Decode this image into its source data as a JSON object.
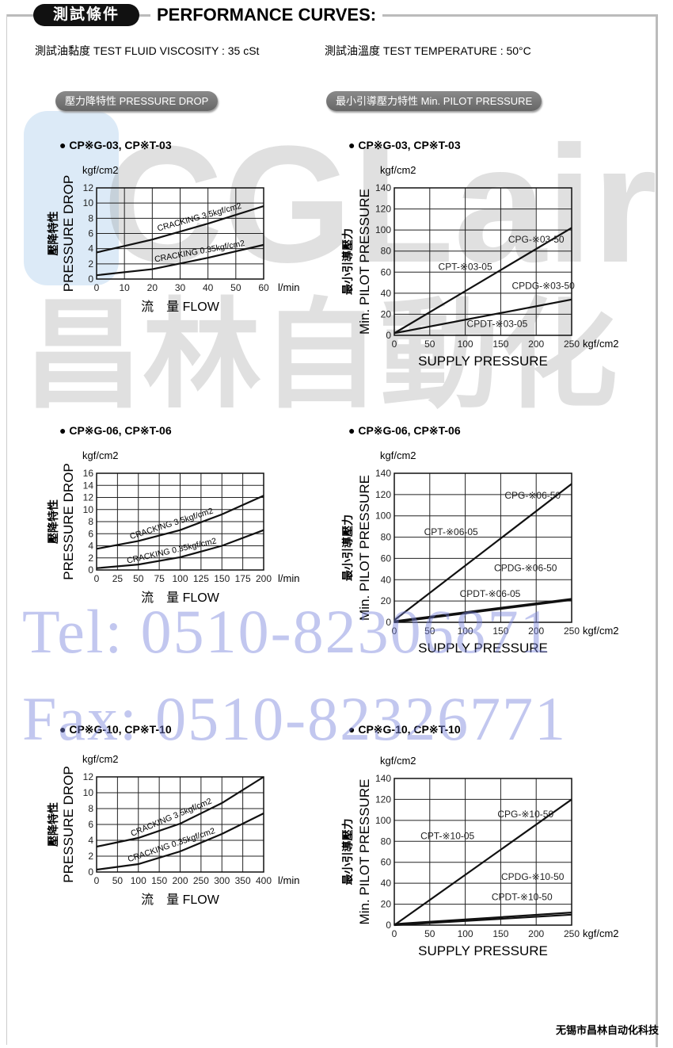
{
  "header": {
    "pill": "測試條件",
    "title": "PERFORMANCE CURVES:",
    "viscosity": "測試油黏度  TEST FLUID VISCOSITY : 35 cSt",
    "temperature": "測試油溫度  TEST TEMPERATURE : 50°C"
  },
  "sections": {
    "left": "壓力降特性  PRESSURE DROP",
    "right": "最小引導壓力特性  Min. PILOT PRESSURE"
  },
  "watermark": {
    "logo": "CGLair 昌林自動化",
    "tel": "Tel: 0510-82306871",
    "fax": "Fax: 0510-82326771"
  },
  "footer": "无锡市昌林自动化科技",
  "colors": {
    "line": "#111111",
    "grid": "#222222",
    "section_bg": "#777777",
    "watermark_blue": "#7882dc"
  },
  "chart_data": [
    {
      "type": "line",
      "title": "● CP※G-03, CP※T-03",
      "unit": "kgf/cm2",
      "ylabel": "PRESSURE DROP",
      "ylabel_cn": "壓降特性",
      "xlabel": "流　量  FLOW",
      "xunit": "l/min",
      "xlim": [
        0,
        60
      ],
      "xticks": [
        0,
        10,
        20,
        30,
        40,
        50,
        60
      ],
      "ylim": [
        0,
        12
      ],
      "yticks": [
        0,
        2,
        4,
        6,
        8,
        10,
        12
      ],
      "grid": true,
      "series": [
        {
          "name": "CRACKING 3.5kgf/cm2",
          "x": [
            0,
            20,
            40,
            60
          ],
          "y": [
            3.5,
            5.2,
            7.3,
            9.6
          ]
        },
        {
          "name": "CRACKING 0.35kgf/cm2",
          "x": [
            0,
            20,
            40,
            60
          ],
          "y": [
            0.5,
            1.3,
            2.8,
            4.5
          ]
        }
      ]
    },
    {
      "type": "line",
      "title": "● CP※G-03, CP※T-03",
      "unit": "kgf/cm2",
      "ylabel": "Min. PILOT PRESSURE",
      "ylabel_cn": "最小引導壓力",
      "xlabel": "SUPPLY PRESSURE",
      "xunit": "kgf/cm2",
      "xlim": [
        0,
        250
      ],
      "xticks": [
        0,
        50,
        100,
        150,
        200,
        250
      ],
      "ylim": [
        0,
        140
      ],
      "yticks": [
        0,
        20,
        40,
        60,
        80,
        100,
        120,
        140
      ],
      "grid": true,
      "series": [
        {
          "name": "CPG-※03-50 / CPT-※03-05",
          "x": [
            0,
            250
          ],
          "y": [
            2,
            102
          ]
        },
        {
          "name": "CPDG-※03-50 / CPDT-※03-05",
          "x": [
            0,
            250
          ],
          "y": [
            2,
            34
          ]
        }
      ],
      "annotations": [
        "CPG-※03-50",
        "CPT-※03-05",
        "CPDG-※03-50",
        "CPDT-※03-05"
      ]
    },
    {
      "type": "line",
      "title": "● CP※G-06, CP※T-06",
      "unit": "kgf/cm2",
      "ylabel": "PRESSURE DROP",
      "ylabel_cn": "壓降特性",
      "xlabel": "流　量  FLOW",
      "xunit": "l/min",
      "xlim": [
        0,
        200
      ],
      "xticks": [
        0,
        25,
        50,
        75,
        100,
        125,
        150,
        175,
        200
      ],
      "ylim": [
        0,
        16
      ],
      "yticks": [
        0,
        2,
        4,
        6,
        8,
        10,
        12,
        14,
        16
      ],
      "grid": true,
      "series": [
        {
          "name": "CRACKING 3.5kgf/cm2",
          "x": [
            0,
            50,
            100,
            150,
            200
          ],
          "y": [
            3.5,
            4.8,
            6.6,
            9.2,
            12.3
          ]
        },
        {
          "name": "CRACKING 0.35kgf/cm2",
          "x": [
            0,
            50,
            100,
            150,
            200
          ],
          "y": [
            0.3,
            0.9,
            2.1,
            4,
            6.6
          ]
        }
      ]
    },
    {
      "type": "line",
      "title": "● CP※G-06, CP※T-06",
      "unit": "kgf/cm2",
      "ylabel": "Min. PILOT PRESSURE",
      "ylabel_cn": "最小引導壓力",
      "xlabel": "SUPPLY PRESSURE",
      "xunit": "kgf/cm2",
      "xlim": [
        0,
        250
      ],
      "xticks": [
        0,
        50,
        100,
        150,
        200,
        250
      ],
      "ylim": [
        0,
        140
      ],
      "yticks": [
        0,
        20,
        40,
        60,
        80,
        100,
        120,
        140
      ],
      "grid": true,
      "series": [
        {
          "name": "CPG-※06-50 / CPT-※06-05",
          "x": [
            0,
            250
          ],
          "y": [
            2,
            130
          ]
        },
        {
          "name": "CPDG-※06-50",
          "x": [
            0,
            250
          ],
          "y": [
            1,
            22
          ]
        },
        {
          "name": "CPDT-※06-05",
          "x": [
            0,
            250
          ],
          "y": [
            0,
            21
          ]
        }
      ],
      "annotations": [
        "CPG-※06-50",
        "CPT-※06-05",
        "CPDG-※06-50",
        "CPDT-※06-05"
      ]
    },
    {
      "type": "line",
      "title": "● CP※G-10, CP※T-10",
      "unit": "kgf/cm2",
      "ylabel": "PRESSURE DROP",
      "ylabel_cn": "壓降特性",
      "xlabel": "流　量  FLOW",
      "xunit": "l/min",
      "xlim": [
        0,
        400
      ],
      "xticks": [
        0,
        50,
        100,
        150,
        200,
        250,
        300,
        350,
        400
      ],
      "ylim": [
        0,
        12
      ],
      "yticks": [
        0,
        2,
        4,
        6,
        8,
        10,
        12
      ],
      "grid": true,
      "series": [
        {
          "name": "CRACKING 3.5kgf/cm2",
          "x": [
            0,
            100,
            200,
            300,
            400
          ],
          "y": [
            3.2,
            4.3,
            6.1,
            8.7,
            12
          ]
        },
        {
          "name": "CRACKING 0.35kgf/cm2",
          "x": [
            0,
            100,
            200,
            300,
            400
          ],
          "y": [
            0.3,
            1,
            2.6,
            4.8,
            7.4
          ]
        }
      ]
    },
    {
      "type": "line",
      "title": "● CP※G-10, CP※T-10",
      "unit": "kgf/cm2",
      "ylabel": "Min. PILOT PRESSURE",
      "ylabel_cn": "最小引導壓力",
      "xlabel": "SUPPLY PRESSURE",
      "xunit": "kgf/cm2",
      "xlim": [
        0,
        250
      ],
      "xticks": [
        0,
        50,
        100,
        150,
        200,
        250
      ],
      "ylim": [
        0,
        140
      ],
      "yticks": [
        0,
        20,
        40,
        60,
        80,
        100,
        120,
        140
      ],
      "grid": true,
      "series": [
        {
          "name": "CPG-※10-50 / CPT-※10-05",
          "x": [
            0,
            250
          ],
          "y": [
            0,
            120
          ]
        },
        {
          "name": "CPDG-※10-50",
          "x": [
            0,
            250
          ],
          "y": [
            1,
            12
          ]
        },
        {
          "name": "CPDT-※10-50",
          "x": [
            0,
            250
          ],
          "y": [
            0,
            10
          ]
        }
      ],
      "annotations": [
        "CPG-※10-50",
        "CPT-※10-05",
        "CPDG-※10-50",
        "CPDT-※10-50"
      ]
    }
  ]
}
